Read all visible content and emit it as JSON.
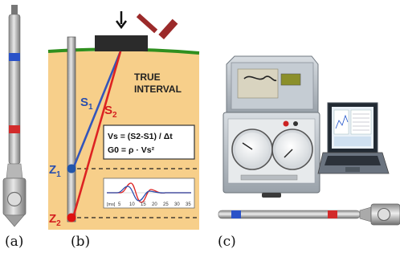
{
  "panel_labels": {
    "a": "(a)",
    "b": "(b)",
    "c": "(c)"
  },
  "diagram": {
    "title_line1": "TRUE",
    "title_line2": "INTERVAL",
    "s1_label": "S",
    "s1_sub": "1",
    "s2_label": "S",
    "s2_sub": "2",
    "z1_label": "Z",
    "z1_sub": "1",
    "z2_label": "Z",
    "z2_sub": "2",
    "eq1": "Vs = (S2-S1) / Δt",
    "eq2": "G0 = ρ · Vs²",
    "trace_ticks": [
      "5",
      "10",
      "15",
      "20",
      "25",
      "30",
      "35"
    ],
    "trace_unit": "[ms]",
    "colors": {
      "ground": "#f7cf8a",
      "surface": "#2f8f1f",
      "s1_ray": "#3355bb",
      "s2_ray": "#dd2222",
      "z1_point": "#2255aa",
      "z2_point": "#dd1111",
      "hammer": "#9b2a2a"
    }
  }
}
